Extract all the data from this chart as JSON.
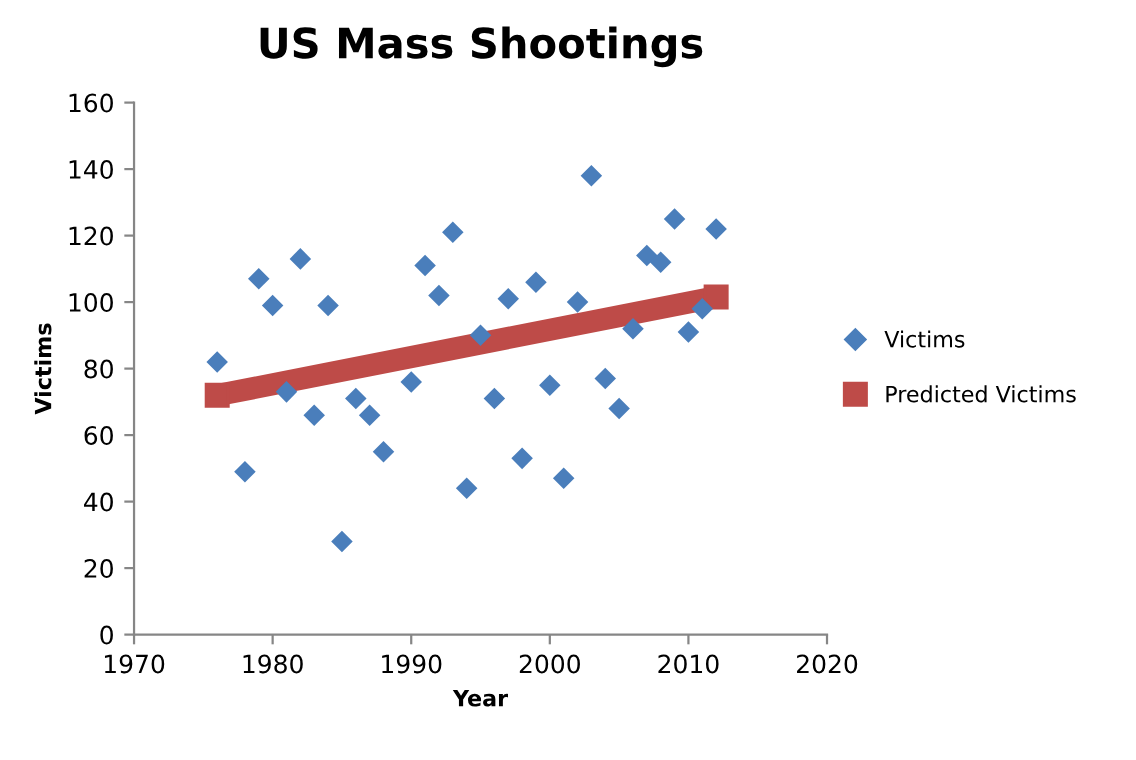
{
  "chart_data": {
    "type": "scatter",
    "title": "US Mass Shootings",
    "xlabel": "Year",
    "ylabel": "Victims",
    "xlim": [
      1970,
      2020
    ],
    "xticks": [
      1970,
      1980,
      1990,
      2000,
      2010,
      2020
    ],
    "ylim": [
      0,
      160
    ],
    "yticks": [
      0,
      20,
      40,
      60,
      80,
      100,
      120,
      140,
      160
    ],
    "grid": false,
    "legend": "right",
    "series": [
      {
        "name": "Victims",
        "marker": "diamond",
        "color": "#4a7ebb",
        "x": [
          1976,
          1978,
          1979,
          1980,
          1981,
          1982,
          1983,
          1984,
          1985,
          1986,
          1987,
          1988,
          1990,
          1991,
          1992,
          1993,
          1994,
          1995,
          1996,
          1997,
          1998,
          1999,
          2000,
          2001,
          2002,
          2003,
          2004,
          2005,
          2006,
          2007,
          2008,
          2009,
          2010,
          2011,
          2012
        ],
        "values": [
          82,
          49,
          107,
          99,
          73,
          113,
          66,
          99,
          28,
          71,
          66,
          55,
          76,
          111,
          102,
          121,
          44,
          90,
          71,
          101,
          53,
          106,
          75,
          47,
          100,
          138,
          77,
          68,
          92,
          114,
          112,
          125,
          91,
          98,
          122
        ]
      },
      {
        "name": "Predicted Victims",
        "type": "line",
        "marker": "square",
        "color": "#be4b48",
        "x": [
          1976,
          2012
        ],
        "values": [
          72,
          101.5
        ]
      }
    ]
  }
}
